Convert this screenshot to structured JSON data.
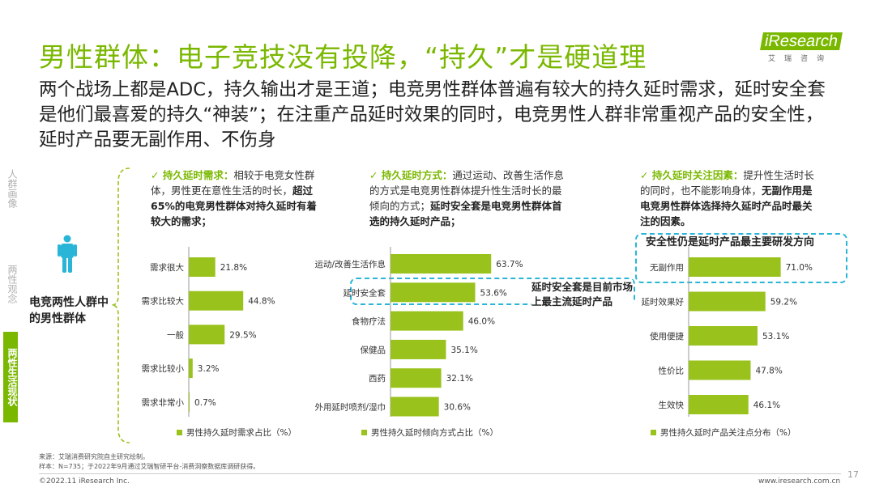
{
  "title": "男性群体：电子竞技没有投降，“持久”才是硬道理",
  "subtitle": "两个战场上都是ADC，持久输出才是王道；电竞男性群体普遍有较大的持久延时需求，延时安全套是他们最喜爱的持久“神装”；在注重产品延时效果的同时，电竞男性人群非常重视产品的安全性，延时产品要无副作用、不伤身",
  "logo": {
    "brand": "iResearch",
    "cn": "艾瑞咨询"
  },
  "sidebar": [
    {
      "label": "人群画像",
      "active": false
    },
    {
      "label": "两性观念",
      "active": false
    },
    {
      "label": "两性生活现状",
      "active": true
    }
  ],
  "group_label": "电竞两性人群中的男性群体",
  "panels": [
    {
      "desc_head": "✓ 持久延时需求：",
      "desc_normal": "相较于电竞女性群体，男性更在意性生活的时长，",
      "desc_bold": "超过65%的电竞男性群体对持久延时有着较大的需求；"
    },
    {
      "desc_head": "✓ 持久延时方式：",
      "desc_normal": "通过运动、改善生活作息的方式是电竞男性群体提升性生活时长的最倾向的方式；",
      "desc_bold": "延时安全套是电竞男性群体首选的持久延时产品；"
    },
    {
      "desc_head": "✓ 持久延时关注因素：",
      "desc_normal": "提升性生活时长的同时，也不能影响身体，",
      "desc_bold": "无副作用是电竞男性群体选择持久延时产品时最关注的因素。"
    }
  ],
  "callouts": {
    "condom": "延时安全套是目前市场上最主流延时产品",
    "safety": "安全性仍是延时产品最主要研发方向"
  },
  "chart_data": [
    {
      "type": "bar",
      "orientation": "horizontal",
      "categories": [
        "需求很大",
        "需求比较大",
        "一般",
        "需求比较小",
        "需求非常小"
      ],
      "values": [
        21.8,
        44.8,
        29.5,
        3.2,
        0.7
      ],
      "value_labels": [
        "21.8%",
        "44.8%",
        "29.5%",
        "3.2%",
        "0.7%"
      ],
      "legend": "男性持久延时需求占比（%）",
      "unit": "%",
      "color": "#99c21c"
    },
    {
      "type": "bar",
      "orientation": "horizontal",
      "categories": [
        "运动/改善生活作息",
        "延时安全套",
        "食物疗法",
        "保健品",
        "西药",
        "外用延时喷剂/湿巾"
      ],
      "values": [
        63.7,
        53.6,
        46.0,
        35.1,
        32.1,
        30.6
      ],
      "value_labels": [
        "63.7%",
        "53.6%",
        "46.0%",
        "35.1%",
        "32.1%",
        "30.6%"
      ],
      "legend": "男性持久延时倾向方式占比（%）",
      "unit": "%",
      "color": "#99c21c"
    },
    {
      "type": "bar",
      "orientation": "horizontal",
      "categories": [
        "无副作用",
        "延时效果好",
        "使用便捷",
        "性价比",
        "生效快"
      ],
      "values": [
        71.0,
        59.2,
        53.1,
        47.8,
        46.1
      ],
      "value_labels": [
        "71.0%",
        "59.2%",
        "53.1%",
        "47.8%",
        "46.1%"
      ],
      "legend": "男性持久延时产品关注点分布（%）",
      "unit": "%",
      "color": "#99c21c"
    }
  ],
  "footer": {
    "source": "来源：艾瑞消费研究院自主研究绘制。",
    "sample": "样本：N=735；于2022年9月通过艾瑞智研平台-消费洞察数据库调研获得。",
    "copyright": "©2022.11 iResearch Inc.",
    "website": "www.iresearch.com.cn",
    "page": "17"
  }
}
